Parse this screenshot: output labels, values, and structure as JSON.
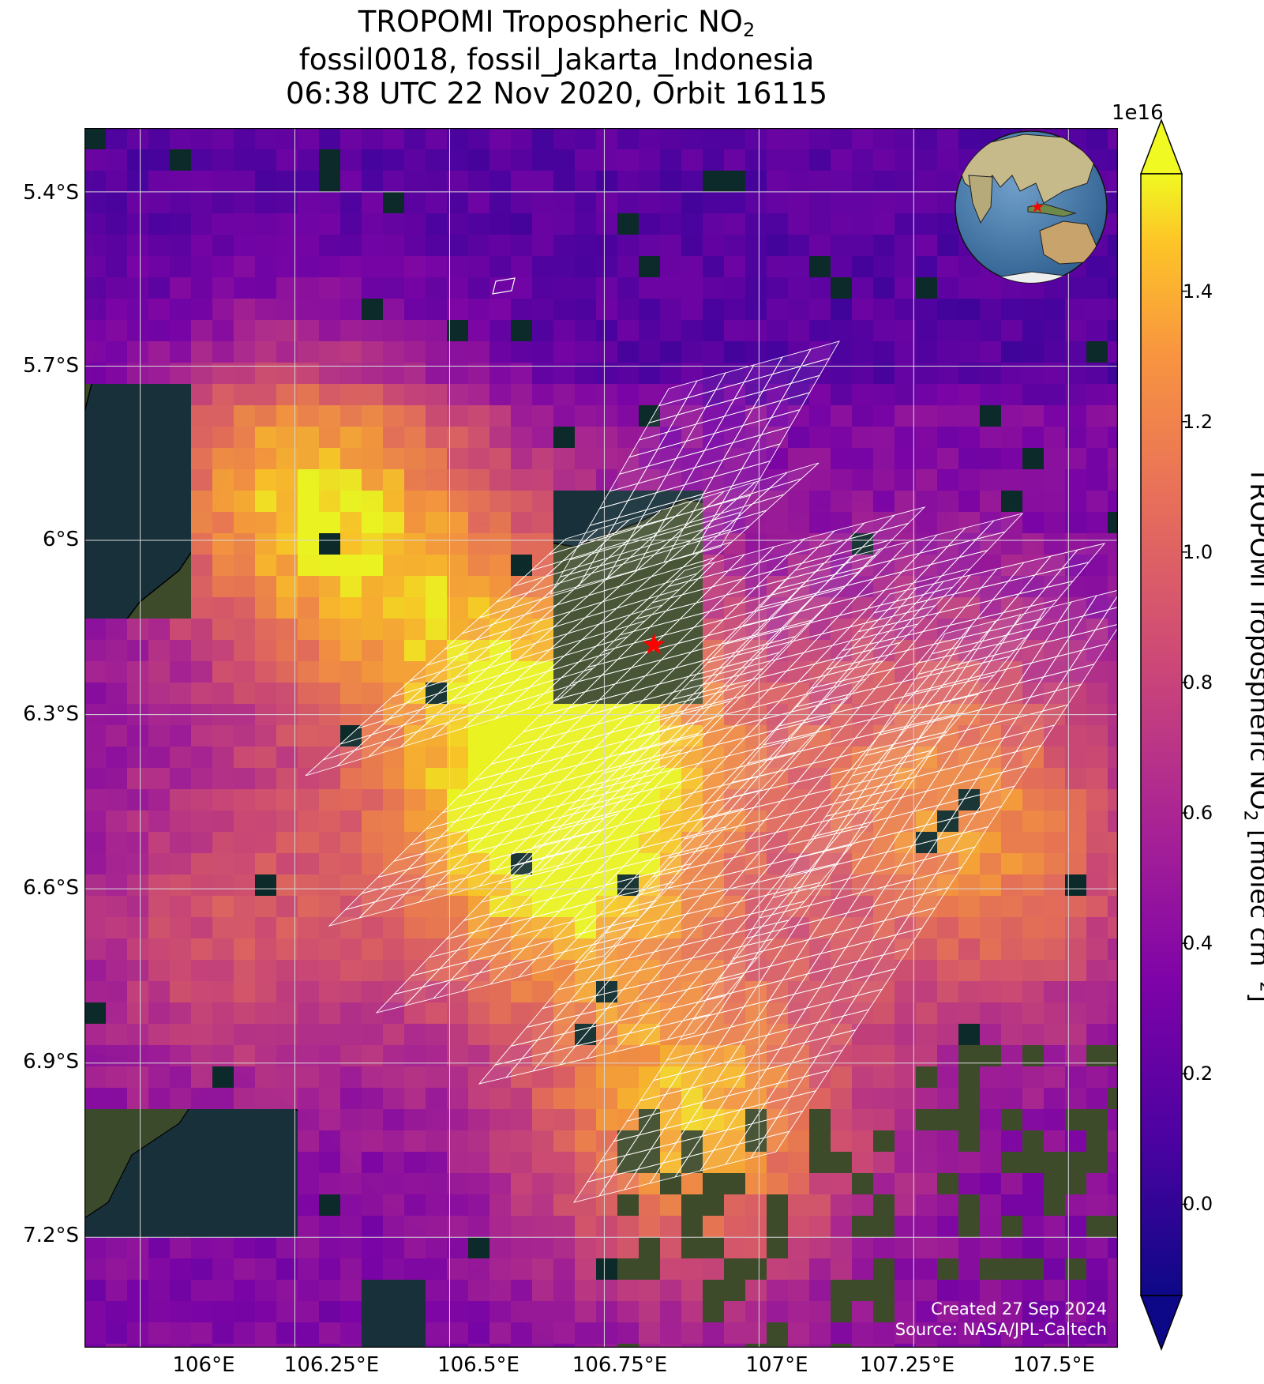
{
  "title": {
    "line1_prefix": "TROPOMI Tropospheric NO",
    "line1_sub": "2",
    "line2": "fossil0018, fossil_Jakarta_Indonesia",
    "line3": "06:38 UTC 22 Nov 2020, Orbit 16115"
  },
  "map": {
    "lon_range": [
      105.91,
      107.58
    ],
    "lat_range": [
      -7.39,
      -5.29
    ],
    "lat_ticks": [
      "5.4°S",
      "5.7°S",
      "6°S",
      "6.3°S",
      "6.6°S",
      "6.9°S",
      "7.2°S"
    ],
    "lat_values": [
      -5.4,
      -5.7,
      -6.0,
      -6.3,
      -6.6,
      -6.9,
      -7.2
    ],
    "lon_ticks": [
      "106°E",
      "106.25°E",
      "106.5°E",
      "106.75°E",
      "107°E",
      "107.25°E",
      "107.5°E"
    ],
    "lon_values": [
      106.0,
      106.25,
      106.5,
      106.75,
      107.0,
      107.25,
      107.5
    ],
    "target_marker": {
      "lon": 106.83,
      "lat": -6.18,
      "color": "#ff0000",
      "icon": "star-icon"
    },
    "colors": {
      "sea": "#17303a",
      "land": "#3d4a2a",
      "grid": "#d8d8d8",
      "sounding": "#ffffff"
    }
  },
  "credits": {
    "created": "Created 27 Sep 2024",
    "source": "Source: NASA/JPL-Caltech"
  },
  "colorbar": {
    "exponent": "1e16",
    "label_prefix": "TROPOMI Tropospheric NO",
    "label_sub": "2",
    "label_mid": " [molec cm",
    "label_sup": "−2",
    "label_end": "]",
    "range": [
      -0.14,
      1.58
    ],
    "ticks": [
      "0.0",
      "0.2",
      "0.4",
      "0.6",
      "0.8",
      "1.0",
      "1.2",
      "1.4"
    ],
    "tick_values": [
      0.0,
      0.2,
      0.4,
      0.6,
      0.8,
      1.0,
      1.2,
      1.4
    ],
    "colormap": "plasma",
    "extend": "both"
  },
  "inset_globe": {
    "icon": "globe-icon",
    "marker": "star-icon",
    "marker_color": "#ff0000"
  }
}
